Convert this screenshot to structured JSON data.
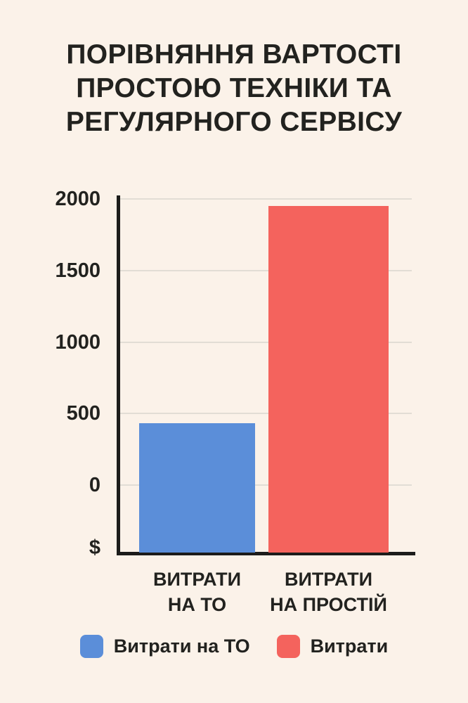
{
  "title": "ПОРІВНЯННЯ ВАРТОСТІ\nПРОСТОЮ ТЕХНІКИ ТА\nРЕГУЛЯРНОГО СЕРВІСУ",
  "colors": {
    "background": "#FBF2E9",
    "text": "#22221F",
    "gridline": "#E2DDD5",
    "axis": "#1C1C1A",
    "bar_blue": "#5B8ED9",
    "bar_red": "#F4635D"
  },
  "chart_data": {
    "type": "bar",
    "title": "ПОРІВНЯННЯ ВАРТОСТІ ПРОСТОЮ ТЕХНІКИ ТА РЕГУЛЯРНОГО СЕРВІСУ",
    "categories": [
      "ВИТРАТИ\nНА ТО",
      "ВИТРАТИ\nНА ПРОСТІЙ"
    ],
    "values": [
      430,
      1950
    ],
    "bar_colors": [
      "#5B8ED9",
      "#F4635D"
    ],
    "xlabel": "",
    "ylabel": "$",
    "currency_symbol": "$",
    "y_tick_labels": [
      "2000",
      "1500",
      "1000",
      "500",
      "0"
    ],
    "y_tick_values": [
      2000,
      1500,
      1000,
      500,
      0
    ],
    "ylim": [
      0,
      2000
    ],
    "grid": true,
    "legend_position": "bottom",
    "legend": [
      {
        "label": "Витрати на ТО",
        "color": "#5B8ED9"
      },
      {
        "label": "Витрати",
        "color": "#F4635D"
      }
    ]
  }
}
